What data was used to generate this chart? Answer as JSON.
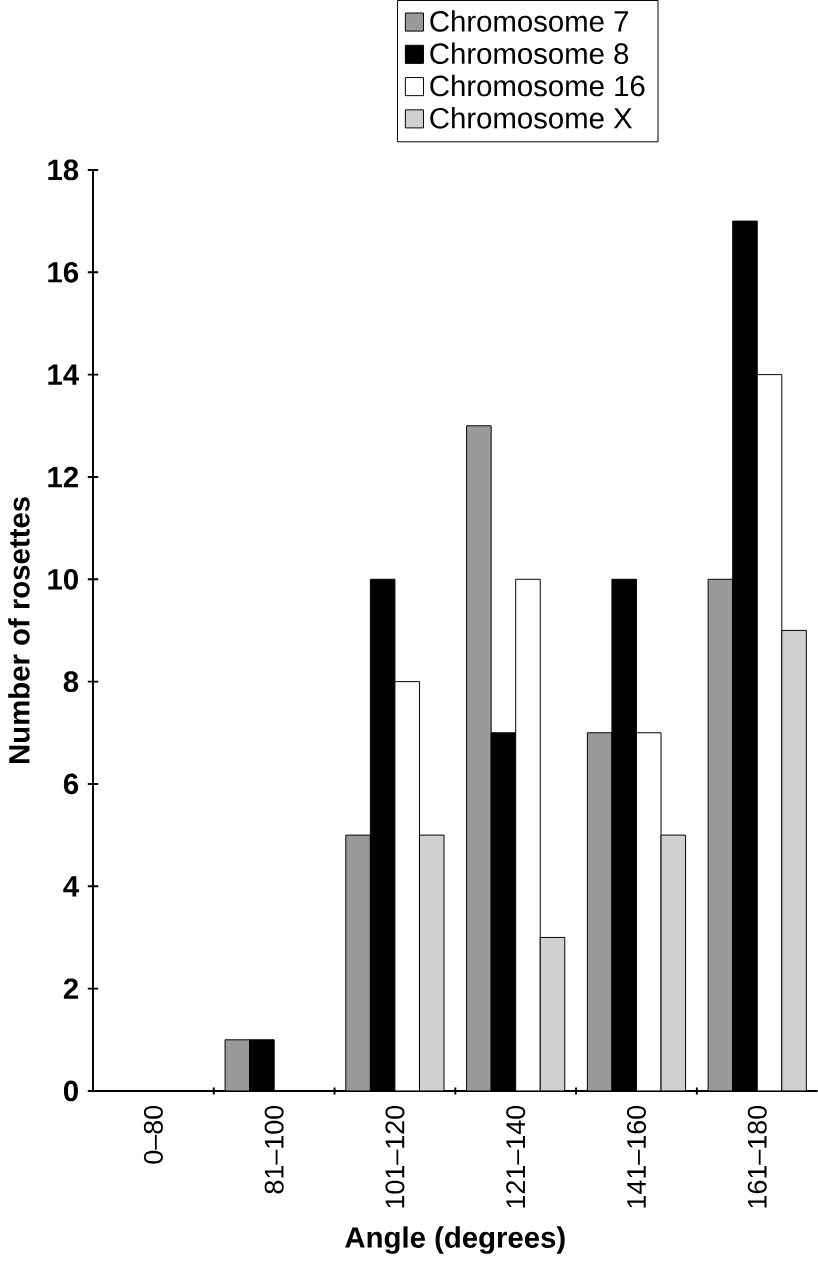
{
  "chart_data": {
    "type": "bar",
    "xlabel": "Angle (degrees)",
    "ylabel": "Number of rosettes",
    "categories": [
      "0–80",
      "81–100",
      "101–120",
      "121–140",
      "141–160",
      "161–180"
    ],
    "series": [
      {
        "name": "Chromosome 7",
        "color": "#9a9a9a",
        "values": [
          null,
          1,
          5,
          13,
          7,
          10
        ]
      },
      {
        "name": "Chromosome 8",
        "color": "#000000",
        "values": [
          null,
          1,
          10,
          7,
          10,
          17
        ]
      },
      {
        "name": "Chromosome 16",
        "color": "#ffffff",
        "values": [
          null,
          null,
          8,
          10,
          7,
          14
        ]
      },
      {
        "name": "Chromosome X",
        "color": "#d0d0d0",
        "values": [
          null,
          null,
          5,
          3,
          5,
          9
        ]
      }
    ],
    "ylim": [
      0,
      18
    ],
    "yticks": [
      0,
      2,
      4,
      6,
      8,
      10,
      12,
      14,
      16,
      18
    ],
    "grid": false,
    "legend": "top"
  }
}
